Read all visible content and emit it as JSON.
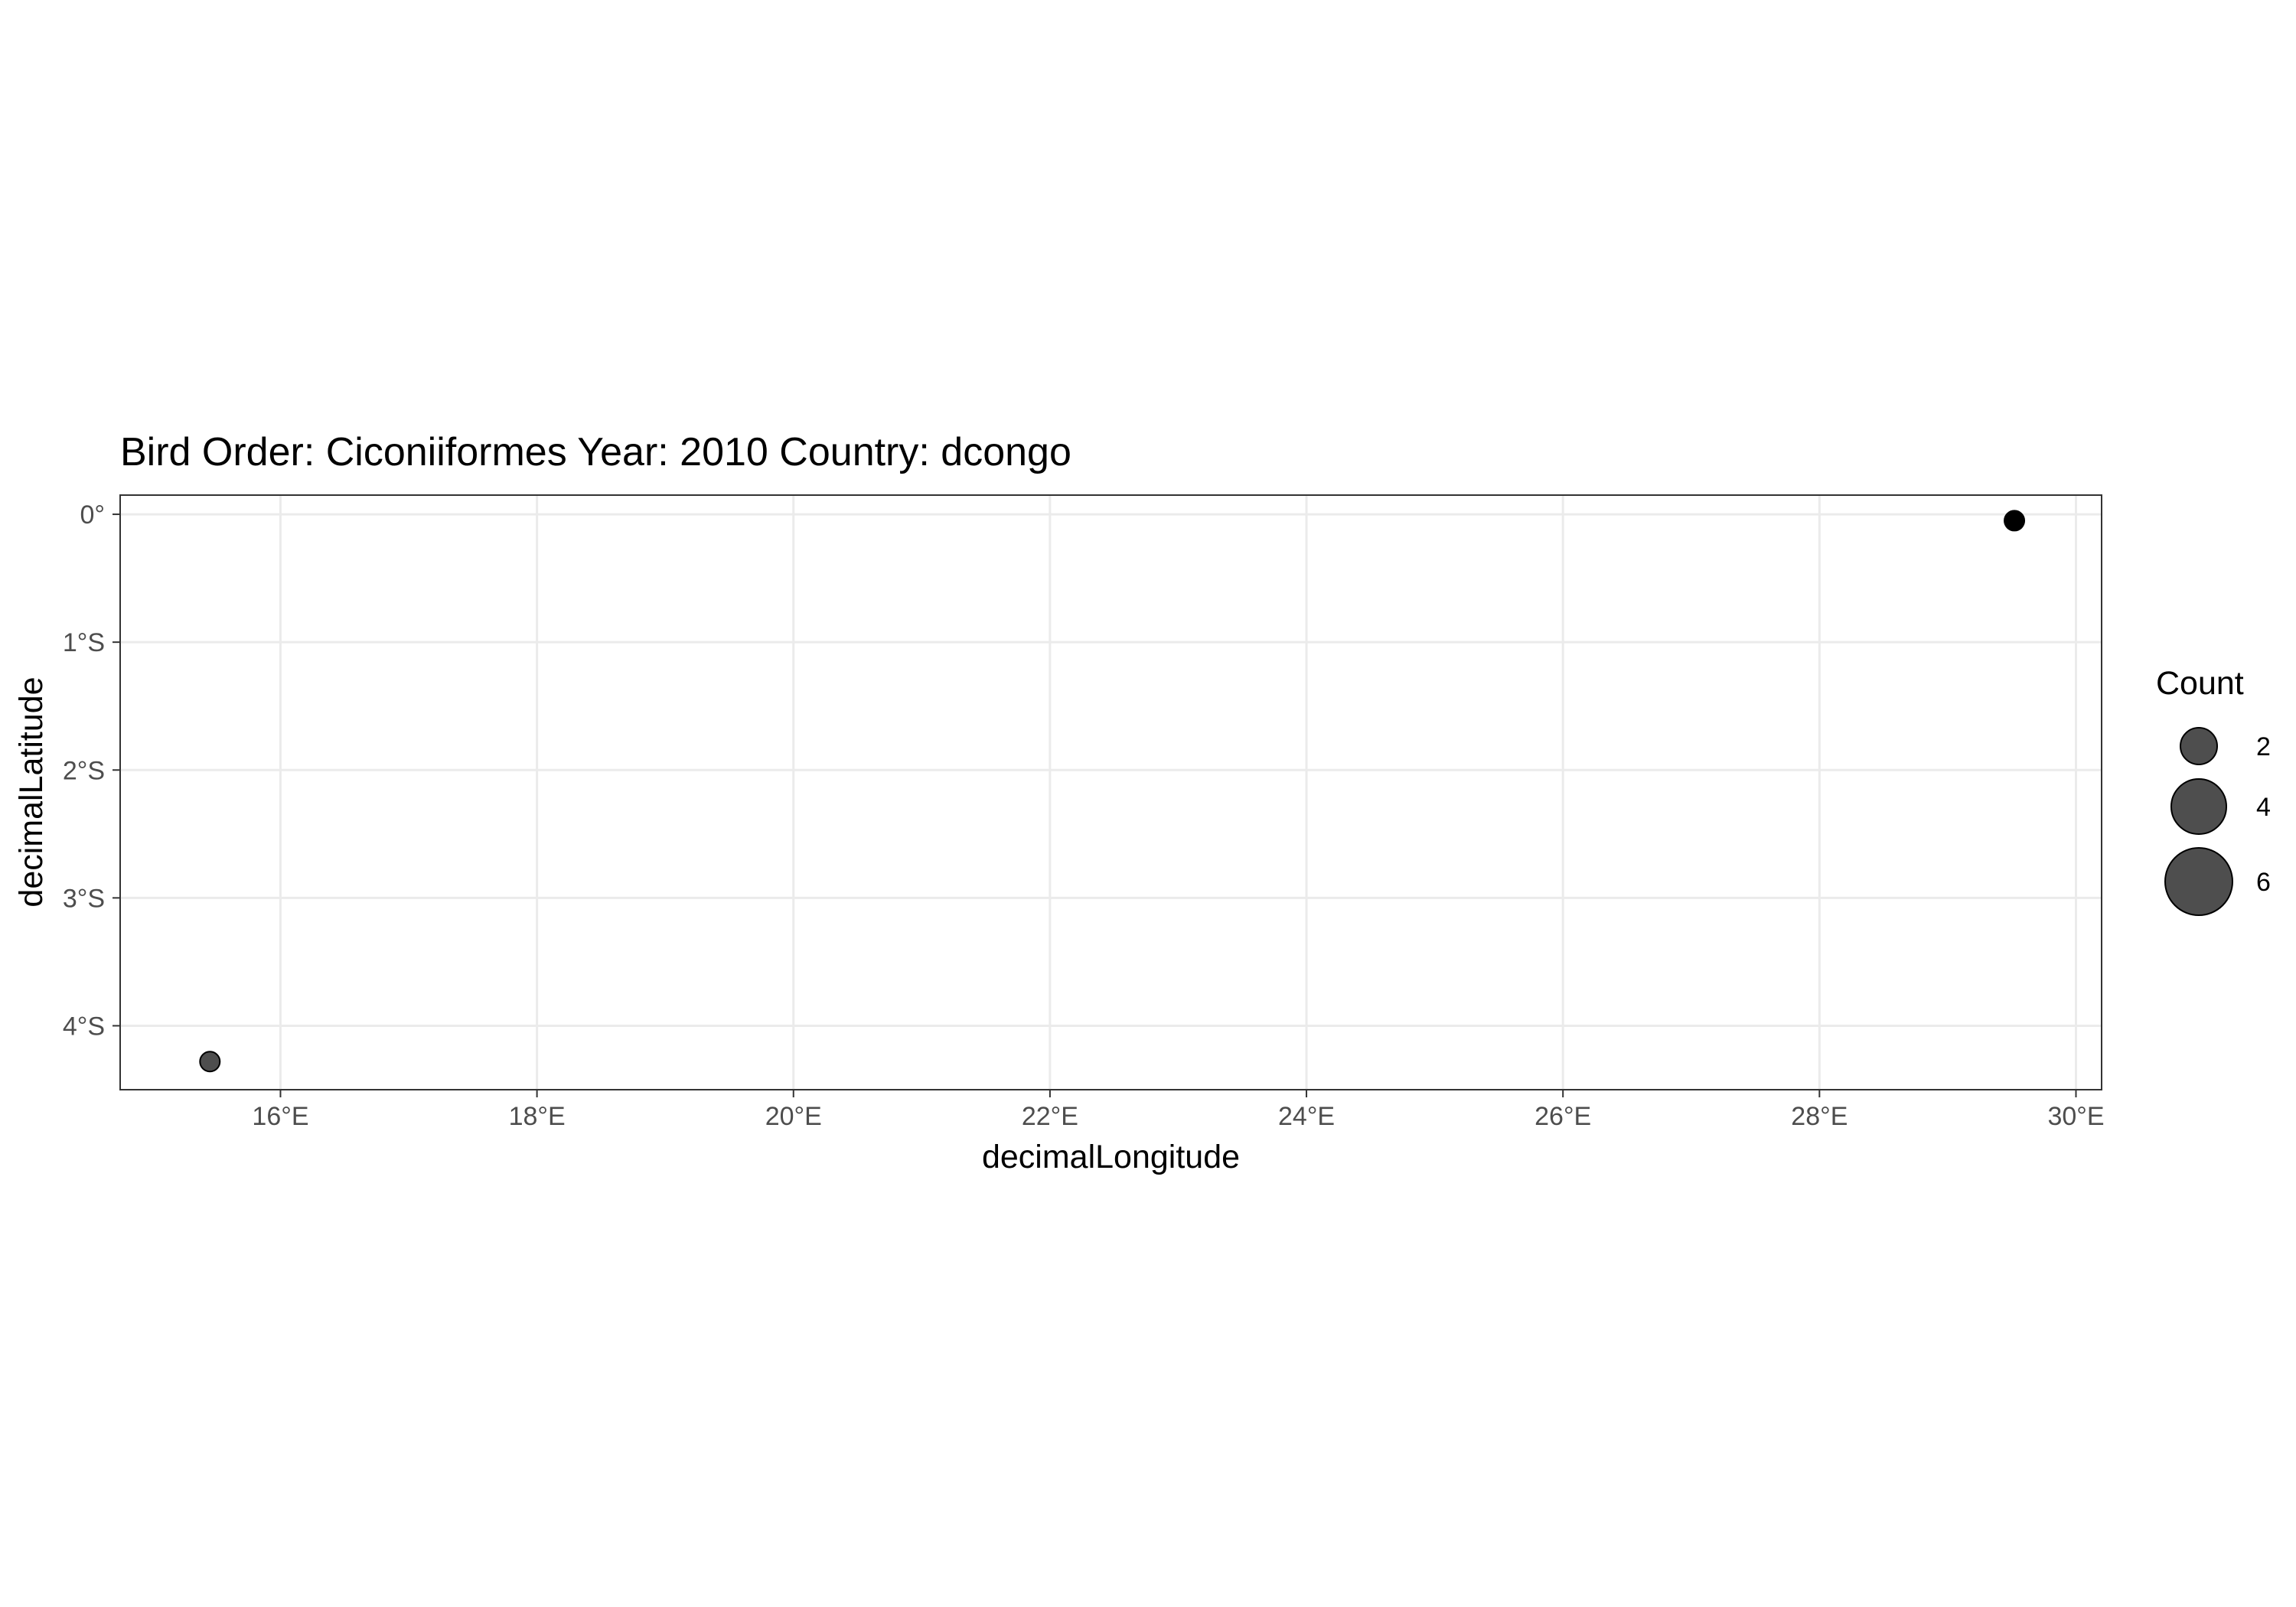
{
  "chart_data": {
    "type": "scatter",
    "title": "Bird Order: Ciconiiformes Year: 2010 Country: dcongo",
    "xlabel": "decimalLongitude",
    "ylabel": "decimalLatitude",
    "xlim": [
      14.75,
      30.2
    ],
    "ylim": [
      -4.5,
      0.15
    ],
    "x_ticks": [
      {
        "value": 16,
        "label": "16°E"
      },
      {
        "value": 18,
        "label": "18°E"
      },
      {
        "value": 20,
        "label": "20°E"
      },
      {
        "value": 22,
        "label": "22°E"
      },
      {
        "value": 24,
        "label": "24°E"
      },
      {
        "value": 26,
        "label": "26°E"
      },
      {
        "value": 28,
        "label": "28°E"
      },
      {
        "value": 30,
        "label": "30°E"
      }
    ],
    "y_ticks": [
      {
        "value": 0,
        "label": "0°"
      },
      {
        "value": -1,
        "label": "1°S"
      },
      {
        "value": -2,
        "label": "2°S"
      },
      {
        "value": -3,
        "label": "3°S"
      },
      {
        "value": -4,
        "label": "4°S"
      }
    ],
    "points": [
      {
        "x": 15.45,
        "y": -4.28,
        "count": 1,
        "color": "#444444"
      },
      {
        "x": 29.52,
        "y": -0.05,
        "count": 1,
        "color": "#000000"
      }
    ],
    "grid": true,
    "legend": {
      "title": "Count",
      "position": "right",
      "entries": [
        {
          "count": 2,
          "label": "2"
        },
        {
          "count": 4,
          "label": "4"
        },
        {
          "count": 6,
          "label": "6"
        }
      ]
    },
    "colors": {
      "point": "#444444",
      "point_dark": "#000000",
      "grid": "#ebebeb",
      "border": "#333333"
    }
  }
}
